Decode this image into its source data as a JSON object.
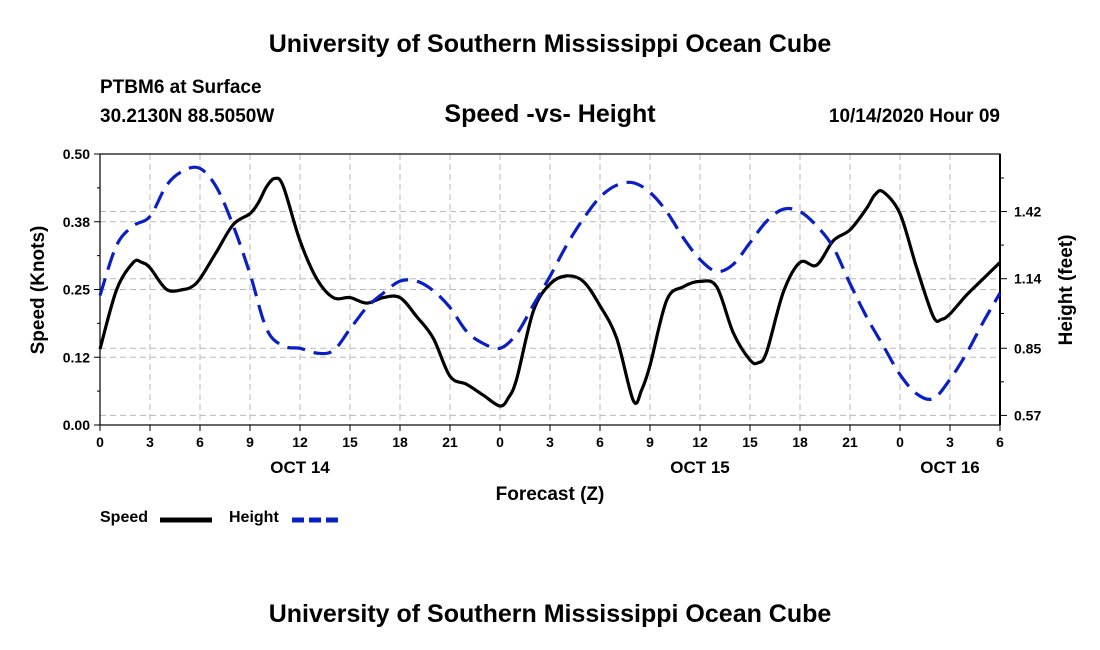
{
  "header": {
    "title": "University of Southern Mississippi Ocean Cube",
    "station": "PTBM6 at Surface",
    "coords": "30.2130N 88.5050W",
    "chart_title": "Speed -vs- Height",
    "datetime": "10/14/2020 Hour 09"
  },
  "footer": {
    "title": "University of Southern Mississippi Ocean Cube"
  },
  "legend": {
    "items": [
      {
        "label": "Speed",
        "color": "#000000",
        "style": "solid"
      },
      {
        "label": "Height",
        "color": "#0a1fc4",
        "style": "dashed"
      }
    ]
  },
  "colors": {
    "speed": "#000000",
    "height": "#0a1fc4",
    "grid": "#b8b8b8"
  },
  "chart_data": {
    "type": "line",
    "xlabel": "Forecast (Z)",
    "ylabel_left": "Speed (Knots)",
    "ylabel_right": "Height (feet)",
    "x_range_hours": [
      0,
      54
    ],
    "xticks": [
      {
        "h": 0,
        "label": "0"
      },
      {
        "h": 3,
        "label": "3"
      },
      {
        "h": 6,
        "label": "6"
      },
      {
        "h": 9,
        "label": "9"
      },
      {
        "h": 12,
        "label": "12"
      },
      {
        "h": 15,
        "label": "15"
      },
      {
        "h": 18,
        "label": "18"
      },
      {
        "h": 21,
        "label": "21"
      },
      {
        "h": 24,
        "label": "0"
      },
      {
        "h": 27,
        "label": "3"
      },
      {
        "h": 30,
        "label": "6"
      },
      {
        "h": 33,
        "label": "9"
      },
      {
        "h": 36,
        "label": "12"
      },
      {
        "h": 39,
        "label": "15"
      },
      {
        "h": 42,
        "label": "18"
      },
      {
        "h": 45,
        "label": "21"
      },
      {
        "h": 48,
        "label": "0"
      },
      {
        "h": 51,
        "label": "3"
      },
      {
        "h": 54,
        "label": "6"
      }
    ],
    "day_labels": [
      {
        "h": 12,
        "label": "OCT 14"
      },
      {
        "h": 36,
        "label": "OCT 15"
      },
      {
        "h": 51,
        "label": "OCT 16"
      }
    ],
    "ylim_left": [
      0,
      0.5
    ],
    "yticks_left": [
      {
        "v": 0.0,
        "label": "0.00"
      },
      {
        "v": 0.125,
        "label": "0.12"
      },
      {
        "v": 0.25,
        "label": "0.25"
      },
      {
        "v": 0.375,
        "label": "0.38"
      },
      {
        "v": 0.5,
        "label": "0.50"
      }
    ],
    "ylim_right": [
      0.53,
      1.66
    ],
    "yticks_right": [
      {
        "v": 0.57,
        "label": "0.57"
      },
      {
        "v": 0.85,
        "label": "0.85"
      },
      {
        "v": 1.14,
        "label": "1.14"
      },
      {
        "v": 1.42,
        "label": "1.42"
      }
    ],
    "grid": true,
    "series": [
      {
        "name": "Speed",
        "axis": "left",
        "x": [
          0,
          1,
          2,
          2.5,
          3,
          4,
          5,
          5.5,
          6,
          7,
          8,
          9,
          9.5,
          10,
          10.5,
          11,
          12,
          13,
          14,
          15,
          16,
          17,
          18,
          19,
          20,
          21,
          22,
          23,
          24,
          24.5,
          25,
          26,
          27,
          28,
          29,
          30,
          31,
          32,
          32.5,
          33,
          34,
          35,
          36,
          37,
          38,
          39,
          39.5,
          40,
          41,
          42,
          43,
          44,
          45,
          46,
          46.5,
          47,
          48,
          49,
          50,
          50.5,
          51,
          52,
          53,
          54
        ],
        "values": [
          0.14,
          0.25,
          0.3,
          0.3,
          0.29,
          0.25,
          0.25,
          0.255,
          0.27,
          0.32,
          0.37,
          0.39,
          0.41,
          0.44,
          0.455,
          0.44,
          0.34,
          0.27,
          0.235,
          0.235,
          0.225,
          0.235,
          0.235,
          0.2,
          0.16,
          0.09,
          0.075,
          0.055,
          0.035,
          0.05,
          0.085,
          0.21,
          0.26,
          0.275,
          0.265,
          0.22,
          0.16,
          0.045,
          0.065,
          0.11,
          0.23,
          0.255,
          0.265,
          0.255,
          0.17,
          0.12,
          0.115,
          0.135,
          0.245,
          0.3,
          0.295,
          0.34,
          0.36,
          0.4,
          0.425,
          0.43,
          0.39,
          0.29,
          0.2,
          0.195,
          0.205,
          0.24,
          0.27,
          0.3
        ]
      },
      {
        "name": "Height",
        "axis": "right",
        "x": [
          0,
          1,
          2,
          3,
          4,
          5,
          6,
          7,
          8,
          9,
          10,
          11,
          12,
          13,
          14,
          15,
          16,
          17,
          18,
          19,
          20,
          21,
          22,
          23,
          24,
          25,
          26,
          27,
          28,
          29,
          30,
          31,
          32,
          33,
          34,
          35,
          36,
          37,
          38,
          39,
          40,
          41,
          42,
          43,
          44,
          45,
          46,
          47,
          48,
          49,
          50,
          51,
          52,
          53,
          54
        ],
        "values": [
          1.07,
          1.28,
          1.36,
          1.4,
          1.53,
          1.59,
          1.6,
          1.52,
          1.36,
          1.16,
          0.93,
          0.86,
          0.85,
          0.83,
          0.84,
          0.93,
          1.02,
          1.08,
          1.13,
          1.13,
          1.09,
          1.02,
          0.92,
          0.87,
          0.85,
          0.91,
          1.03,
          1.15,
          1.28,
          1.39,
          1.48,
          1.53,
          1.54,
          1.5,
          1.42,
          1.31,
          1.22,
          1.17,
          1.2,
          1.29,
          1.38,
          1.43,
          1.42,
          1.36,
          1.27,
          1.12,
          0.98,
          0.86,
          0.74,
          0.66,
          0.64,
          0.72,
          0.83,
          0.96,
          1.08
        ]
      }
    ]
  }
}
